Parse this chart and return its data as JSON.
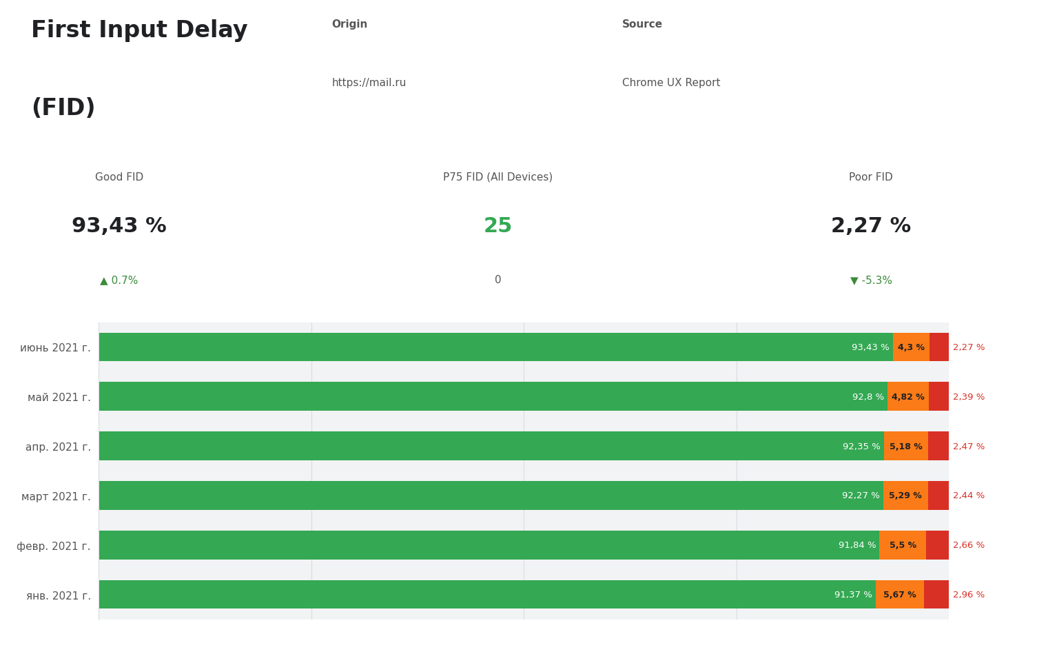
{
  "title_line1": "First Input Delay",
  "title_line2": "(FID)",
  "origin_label": "Origin",
  "origin_value": "https://mail.ru",
  "source_label": "Source",
  "source_value": "Chrome UX Report",
  "metric_good_label": "Good FID",
  "metric_good_value": "93,43 %",
  "metric_good_delta": "▲ 0.7%",
  "metric_good_delta_color": "#3c8a3c",
  "metric_p75_label": "P75 FID (All Devices)",
  "metric_p75_value": "25",
  "metric_p75_delta": "0",
  "metric_p75_delta_color": "#555555",
  "metric_poor_label": "Poor FID",
  "metric_poor_value": "2,27 %",
  "metric_poor_delta": "▼ -5.3%",
  "metric_poor_delta_color": "#3c8a3c",
  "categories": [
    "янв. 2021 г.",
    "февр. 2021 г.",
    "март 2021 г.",
    "апр. 2021 г.",
    "май 2021 г.",
    "июнь 2021 г."
  ],
  "good_values": [
    91.37,
    91.84,
    92.27,
    92.35,
    92.8,
    93.43
  ],
  "needs_values": [
    5.67,
    5.5,
    5.29,
    5.18,
    4.82,
    4.3
  ],
  "poor_values": [
    2.96,
    2.66,
    2.44,
    2.47,
    2.39,
    2.27
  ],
  "good_labels": [
    "91,37 %",
    "91,84 %",
    "92,27 %",
    "92,35 %",
    "92,8 %",
    "93,43 %"
  ],
  "needs_labels": [
    "5,67 %",
    "5,5 %",
    "5,29 %",
    "5,18 %",
    "4,82 %",
    "4,3 %"
  ],
  "poor_labels": [
    "2,96 %",
    "2,66 %",
    "2,44 %",
    "2,47 %",
    "2,39 %",
    "2,27 %"
  ],
  "good_color": "#34a853",
  "needs_color": "#fa7b17",
  "poor_color": "#d93025",
  "bg_color_top": "#ffffff",
  "bg_color_bottom": "#f1f3f4",
  "bar_height": 0.58,
  "gridline_color": "#dadce0",
  "title_fontsize": 24,
  "label_fontsize": 11,
  "bar_label_fontsize": 10
}
